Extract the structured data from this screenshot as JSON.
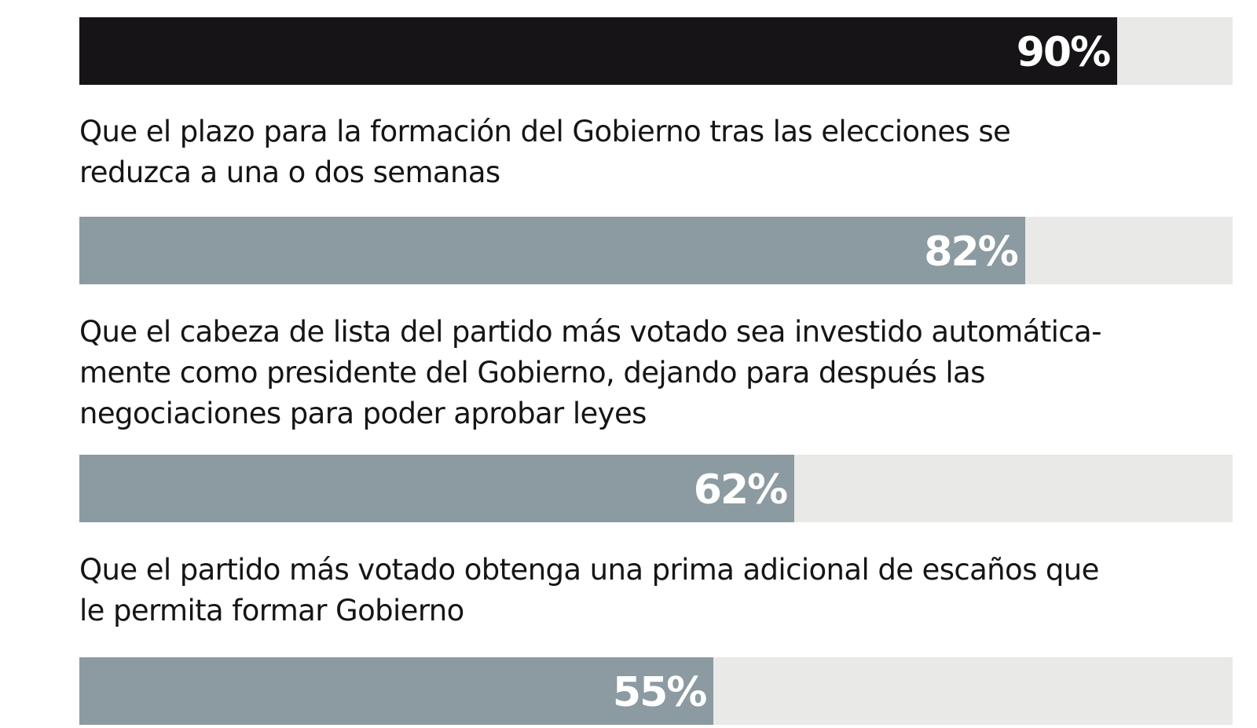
{
  "chart_data": {
    "type": "bar",
    "orientation": "horizontal",
    "xlim": [
      0,
      100
    ],
    "categories": [
      "",
      "Que el plazo para la formación del Gobierno tras las elecciones se reduzca a una o dos semanas",
      "Que el cabeza de lista del partido más votado sea investido automáticamente como presidente del Gobierno, dejando para después las negociaciones para poder aprobar leyes",
      "Que el partido más votado obtenga una prima adicional de escaños que le permita formar Gobierno"
    ],
    "values": [
      90,
      82,
      62,
      55
    ],
    "value_labels": [
      "90%",
      "82%",
      "62%",
      "55%"
    ],
    "label_lines": [
      [],
      [
        "Que el plazo para la formación del Gobierno tras las elecciones se",
        "reduzca a una o dos semanas"
      ],
      [
        "Que el cabeza de lista del partido más votado sea investido automática-",
        "mente como presidente del Gobierno, dejando para después las",
        "negociaciones para poder aprobar leyes"
      ],
      [
        "Que el partido más votado obtenga una prima adicional de escaños que",
        "le permita formar Gobierno"
      ]
    ],
    "highlight_index": 0,
    "colors": {
      "highlight_bar": "#161416",
      "bar": "#8c9aa1",
      "track": "#e9eae7",
      "value_text": "#ffffff",
      "label_text": "#151515"
    },
    "grid": false,
    "legend": "none"
  }
}
